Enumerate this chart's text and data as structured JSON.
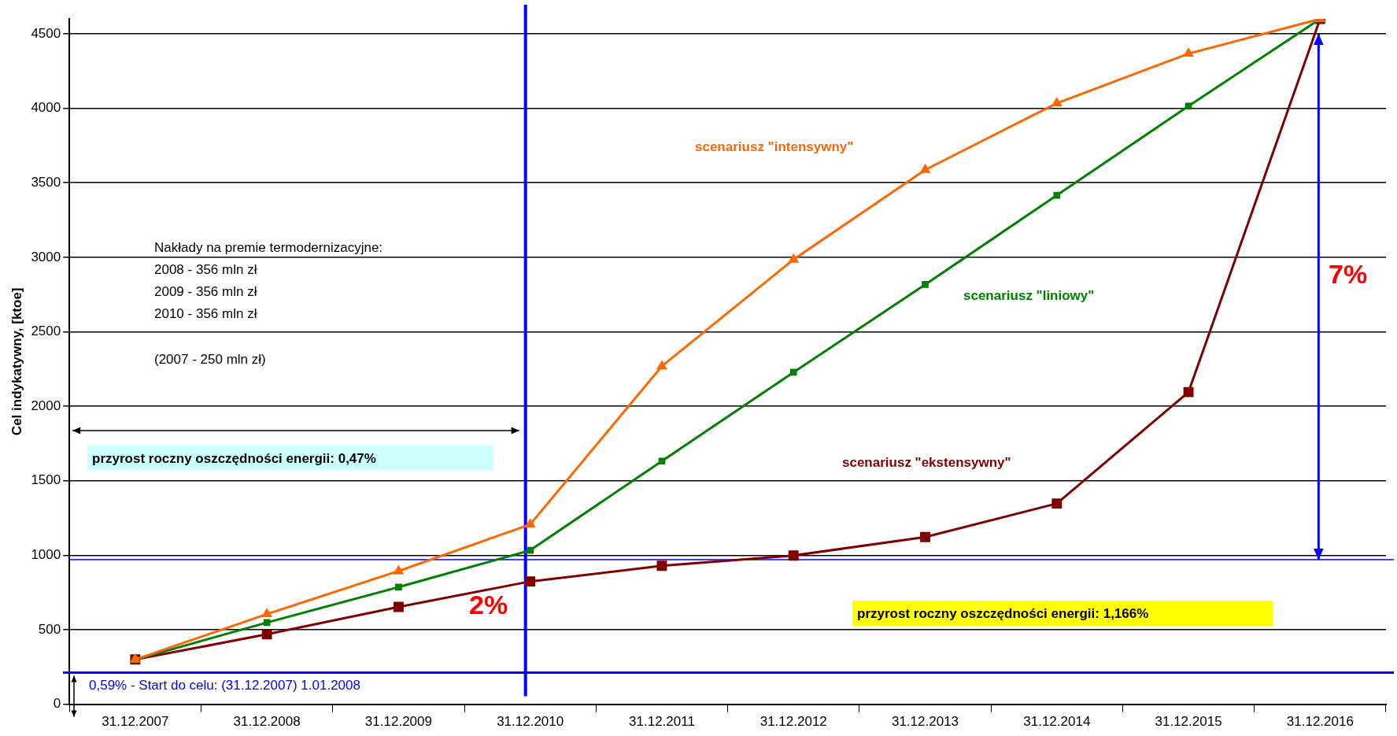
{
  "chart_data": {
    "type": "line",
    "ylabel": "Cel indykatywny, [ktoe]",
    "categories": [
      "31.12.2007",
      "31.12.2008",
      "31.12.2009",
      "31.12.2010",
      "31.12.2011",
      "31.12.2012",
      "31.12.2013",
      "31.12.2014",
      "31.12.2015",
      "31.12.2016"
    ],
    "series": [
      {
        "name": "scenariusz \"intensywny\"",
        "color": "#ff6600",
        "marker": "triangle",
        "values": [
          300,
          605,
          894,
          1207,
          2269,
          2985,
          3587,
          4034,
          4367,
          4600
        ]
      },
      {
        "name": "scenariusz \"liniowy\"",
        "color": "#008000",
        "marker": "square",
        "values": [
          300,
          548,
          786,
          1033,
          1632,
          2228,
          2817,
          3416,
          4015,
          4600
        ]
      },
      {
        "name": "scenariusz \"ekstensywny\"",
        "color": "#800000",
        "marker": "square",
        "values": [
          300,
          469,
          653,
          824,
          929,
          998,
          1122,
          1347,
          2095,
          4600
        ]
      }
    ],
    "ylim": [
      0,
      4600
    ],
    "yticks": [
      0,
      500,
      1000,
      1500,
      2000,
      2500,
      3000,
      3500,
      4000,
      4500
    ],
    "grid": "y",
    "legend": false,
    "ref_lines": [
      {
        "axis": "y",
        "value": 212,
        "color": "#0000ff"
      },
      {
        "axis": "y",
        "value": 970,
        "color": "#0000ff"
      },
      {
        "axis": "x",
        "value": "31.12.2010",
        "color": "#0000ff"
      }
    ],
    "annotations": [
      "Nakłady na premie termodernizacyjne:",
      "2008 - 356 mln zł",
      "2009 - 356 mln zł",
      "2010 - 356 mln zł",
      "(2007 - 250 mln zł)",
      "przyrost roczny oszczędności energii: 0,47%",
      "przyrost roczny oszczędności energii: 1,166%",
      "2%",
      "7%",
      "0,59% - Start do celu: (31.12.2007) 1.01.2008"
    ]
  }
}
